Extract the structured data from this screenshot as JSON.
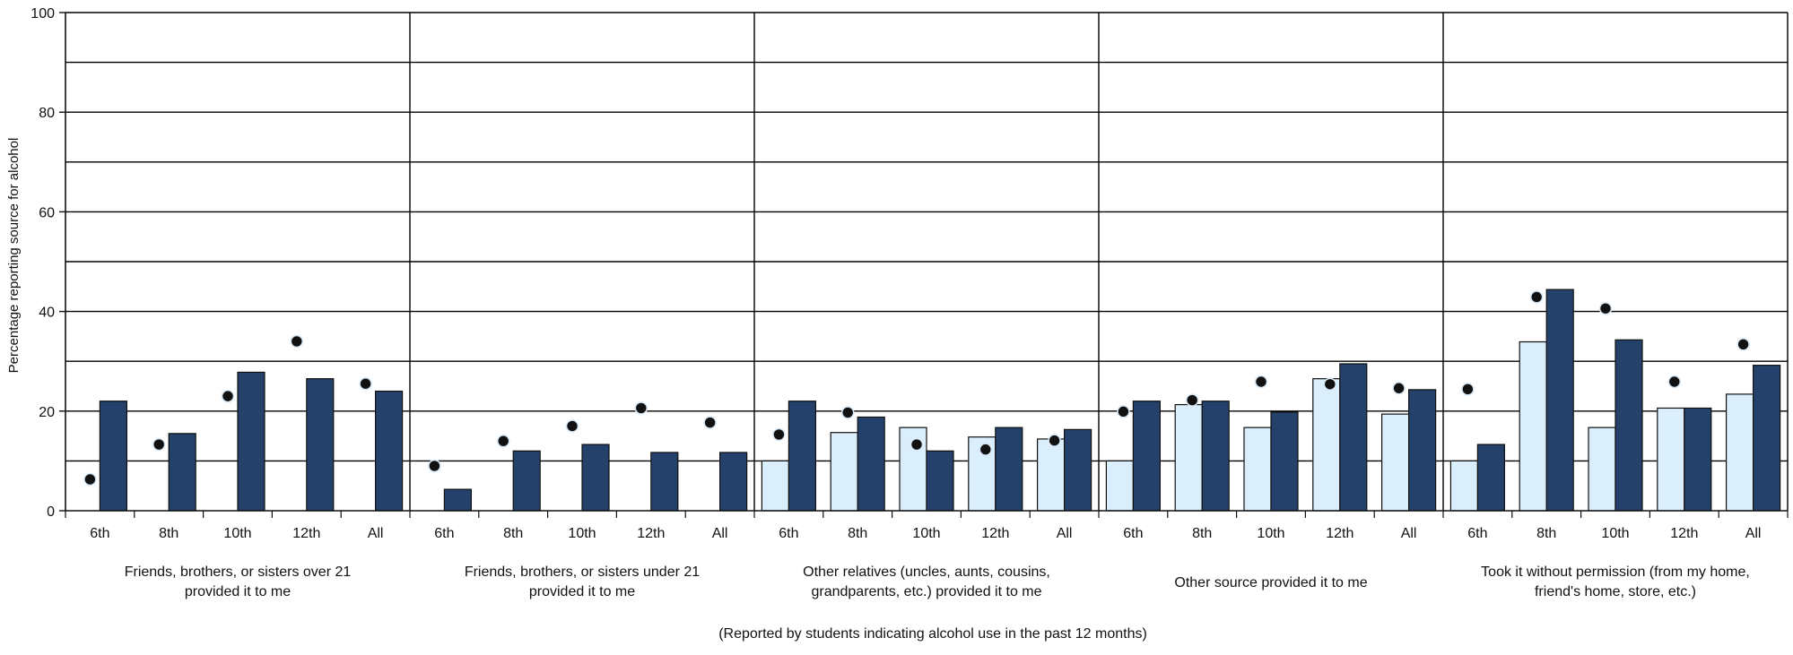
{
  "chart_data": {
    "type": "bar",
    "ylabel": "Percentage reporting source for alcohol",
    "xlabel": "(Reported by students indicating alcohol use in the past 12 months)",
    "ylim": [
      0,
      100
    ],
    "yticks": [
      0,
      20,
      40,
      60,
      80,
      100
    ],
    "grid": true,
    "grades": [
      "6th",
      "8th",
      "10th",
      "12th",
      "All"
    ],
    "groups": [
      {
        "label_lines": [
          "Friends, brothers, or sisters over 21",
          "provided it to me"
        ],
        "light": [
          0,
          0,
          0,
          0,
          0
        ],
        "dark": [
          22,
          15.5,
          27.8,
          26.5,
          24
        ],
        "dots": [
          6.3,
          13.3,
          23,
          34,
          25.5
        ]
      },
      {
        "label_lines": [
          "Friends, brothers, or sisters under 21",
          "provided it to me"
        ],
        "light": [
          0,
          0,
          0,
          0,
          0
        ],
        "dark": [
          4.3,
          12,
          13.3,
          11.7,
          11.7
        ],
        "dots": [
          9,
          14,
          17,
          20.6,
          17.7
        ]
      },
      {
        "label_lines": [
          "Other relatives (uncles, aunts, cousins,",
          "grandparents, etc.) provided it to me"
        ],
        "light": [
          10,
          15.7,
          16.7,
          14.8,
          14.4
        ],
        "dark": [
          22,
          18.8,
          12,
          16.7,
          16.3
        ],
        "dots": [
          15.3,
          19.7,
          13.3,
          12.3,
          14.1
        ]
      },
      {
        "label_lines": [
          "Other source provided it to me"
        ],
        "light": [
          10,
          21.3,
          16.7,
          26.5,
          19.4
        ],
        "dark": [
          22,
          22,
          19.8,
          29.5,
          24.3
        ],
        "dots": [
          19.9,
          22.2,
          25.9,
          25.4,
          24.6
        ]
      },
      {
        "label_lines": [
          "Took it without permission (from my home,",
          "friend's home, store, etc.)"
        ],
        "light": [
          10,
          33.9,
          16.7,
          20.6,
          23.4
        ],
        "dark": [
          13.3,
          44.4,
          34.3,
          20.6,
          29.2
        ],
        "dots": [
          24.4,
          42.9,
          40.6,
          25.9,
          33.4
        ]
      }
    ],
    "colors": {
      "light_bar": "#dbeefc",
      "dark_bar": "#24416b",
      "dot": "#111111",
      "grid": "#000000"
    }
  }
}
